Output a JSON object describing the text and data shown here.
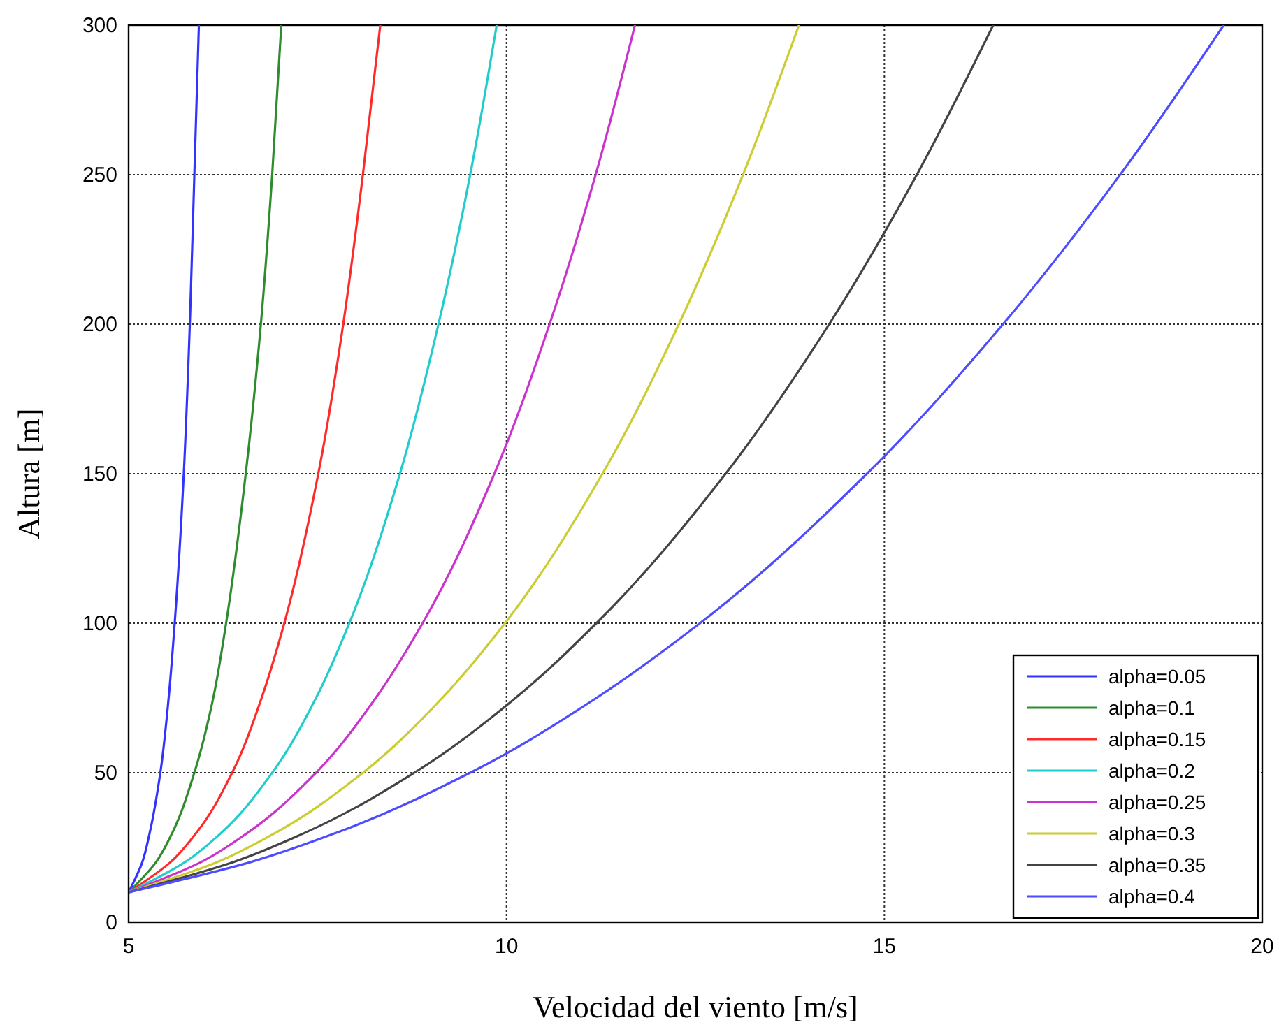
{
  "chart_data": {
    "type": "line",
    "xlabel": "Velocidad del viento [m/s]",
    "ylabel": "Altura [m]",
    "xlim": [
      5,
      20
    ],
    "ylim": [
      0,
      300
    ],
    "xticks": [
      5,
      10,
      15,
      20
    ],
    "yticks": [
      0,
      50,
      100,
      150,
      200,
      250,
      300
    ],
    "grid": true,
    "legend": "bottom right",
    "marker": "none",
    "line_style": "solid",
    "series": [
      {
        "name": "alpha=0.05",
        "color": "#3333ff",
        "x": [
          5,
          5.18,
          5.28,
          5.42,
          5.53,
          5.61,
          5.73,
          5.81,
          5.87,
          5.93
        ],
        "values": [
          10,
          20,
          30,
          50,
          75,
          100,
          150,
          200,
          250,
          300
        ]
      },
      {
        "name": "alpha=0.1",
        "color": "#2e8b2e",
        "x": [
          5,
          5.36,
          5.58,
          5.87,
          6.12,
          6.29,
          6.55,
          6.75,
          6.9,
          7.02
        ],
        "values": [
          10,
          20,
          30,
          50,
          75,
          100,
          150,
          200,
          250,
          300
        ]
      },
      {
        "name": "alpha=0.15",
        "color": "#ff2a2a",
        "x": [
          5,
          5.55,
          5.9,
          6.37,
          6.76,
          7.06,
          7.51,
          7.84,
          8.1,
          8.33
        ],
        "values": [
          10,
          20,
          30,
          50,
          75,
          100,
          150,
          200,
          250,
          300
        ]
      },
      {
        "name": "alpha=0.2",
        "color": "#22cccc",
        "x": [
          5,
          5.74,
          6.23,
          6.9,
          7.48,
          7.92,
          8.59,
          9.1,
          9.52,
          9.87
        ],
        "values": [
          10,
          20,
          30,
          50,
          75,
          100,
          150,
          200,
          250,
          300
        ]
      },
      {
        "name": "alpha=0.25",
        "color": "#cc33cc",
        "x": [
          5,
          5.95,
          6.58,
          7.48,
          8.27,
          8.89,
          9.84,
          10.57,
          11.18,
          11.7
        ],
        "values": [
          10,
          20,
          30,
          50,
          75,
          100,
          150,
          200,
          250,
          300
        ]
      },
      {
        "name": "alpha=0.3",
        "color": "#cccc33",
        "x": [
          5,
          6.16,
          6.95,
          8.1,
          9.15,
          9.98,
          11.27,
          12.28,
          13.13,
          13.87
        ],
        "values": [
          10,
          20,
          30,
          50,
          75,
          100,
          150,
          200,
          250,
          300
        ]
      },
      {
        "name": "alpha=0.35",
        "color": "#444444",
        "x": [
          5,
          6.37,
          7.34,
          8.78,
          10.12,
          11.19,
          12.9,
          14.27,
          15.43,
          16.44
        ],
        "values": [
          10,
          20,
          30,
          50,
          75,
          100,
          150,
          200,
          250,
          300
        ]
      },
      {
        "name": "alpha=0.4",
        "color": "#4d4dff",
        "x": [
          5,
          6.6,
          7.76,
          9.52,
          11.19,
          12.56,
          14.77,
          16.57,
          18.12,
          19.49
        ],
        "values": [
          10,
          20,
          30,
          50,
          75,
          100,
          150,
          200,
          250,
          300
        ]
      }
    ]
  }
}
